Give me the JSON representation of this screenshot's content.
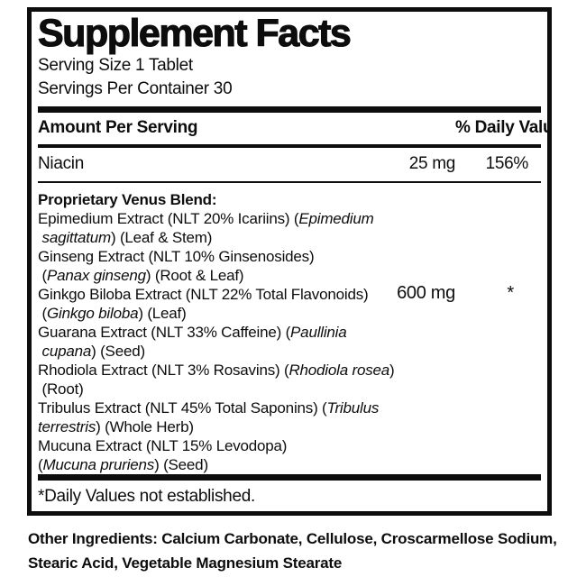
{
  "colors": {
    "ink": "#0d0d0d",
    "background": "#ffffff"
  },
  "label": {
    "title": "Supplement Facts",
    "serving_size": "Serving Size 1 Tablet",
    "servings_per_container": "Servings Per Container 30",
    "header": {
      "amount_per_serving": "Amount Per Serving",
      "daily_value": "% Daily Value"
    },
    "rows": [
      {
        "name": "Niacin",
        "amount": "25 mg",
        "dv": "156%"
      }
    ],
    "blend": {
      "amount": "600 mg",
      "dv": "*",
      "lines": [
        [
          {
            "t": "Proprietary Venus Blend:",
            "b": true
          }
        ],
        [
          {
            "t": "Epimedium Extract (NLT 20% Icariins) ("
          },
          {
            "t": "Epimedium",
            "i": true
          }
        ],
        [
          {
            "t": " "
          },
          {
            "t": "sagittatum",
            "i": true
          },
          {
            "t": ") (Leaf & Stem)"
          }
        ],
        [
          {
            "t": "Ginseng Extract (NLT 10% Ginsenosides)"
          }
        ],
        [
          {
            "t": " ("
          },
          {
            "t": "Panax ginseng",
            "i": true
          },
          {
            "t": ") (Root & Leaf)"
          }
        ],
        [
          {
            "t": "Ginkgo Biloba Extract (NLT 22% Total Flavonoids)"
          }
        ],
        [
          {
            "t": " ("
          },
          {
            "t": "Ginkgo biloba",
            "i": true
          },
          {
            "t": ") (Leaf)"
          }
        ],
        [
          {
            "t": "Guarana Extract (NLT 33% Caffeine) ("
          },
          {
            "t": "Paullinia",
            "i": true
          }
        ],
        [
          {
            "t": " "
          },
          {
            "t": "cupana",
            "i": true
          },
          {
            "t": ") (Seed)"
          }
        ],
        [
          {
            "t": "Rhodiola Extract (NLT 3% Rosavins) ("
          },
          {
            "t": "Rhodiola rosea",
            "i": true
          },
          {
            "t": ")"
          }
        ],
        [
          {
            "t": " (Root)"
          }
        ],
        [
          {
            "t": "Tribulus Extract (NLT 45% Total Saponins) ("
          },
          {
            "t": "Tribulus",
            "i": true
          }
        ],
        [
          {
            "t": "terrestris",
            "i": true
          },
          {
            "t": ") (Whole Herb)"
          }
        ],
        [
          {
            "t": "Mucuna Extract (NLT 15% Levodopa)"
          }
        ],
        [
          {
            "t": "("
          },
          {
            "t": "Mucuna pruriens",
            "i": true
          },
          {
            "t": ") (Seed)"
          }
        ]
      ]
    },
    "footnote": "*Daily Values not established.",
    "other_ingredients": {
      "lines": [
        "Other Ingredients: Calcium Carbonate, Cellulose, Croscarmellose Sodium,",
        "Stearic Acid, Vegetable Magnesium Stearate"
      ]
    }
  }
}
